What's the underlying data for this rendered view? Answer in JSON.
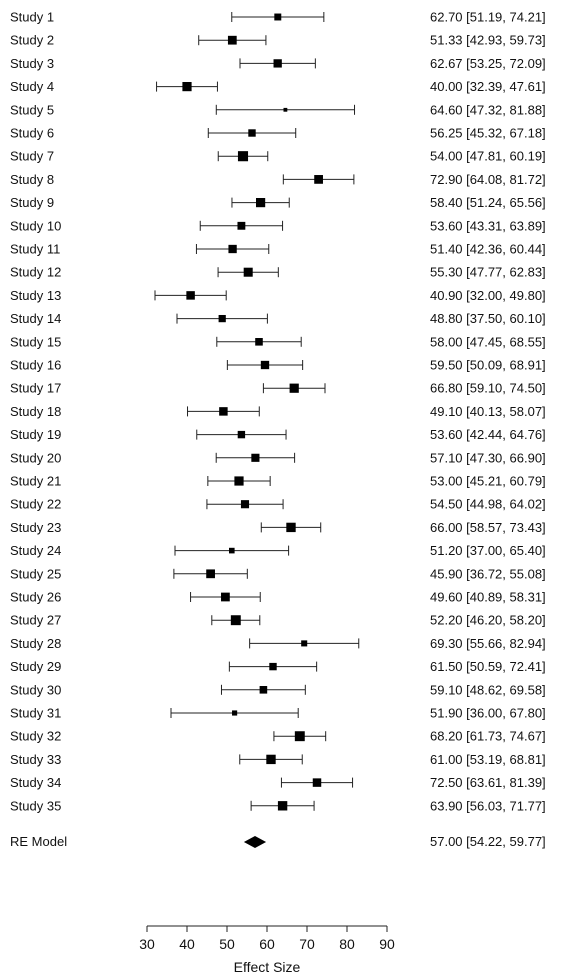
{
  "chart_data": {
    "type": "forest",
    "xlabel": "Effect Size",
    "xlim": [
      30,
      90
    ],
    "xticks": [
      30,
      40,
      50,
      60,
      70,
      80,
      90
    ],
    "grid": false,
    "legend": "none",
    "colors": {
      "marker": "#000000",
      "line": "#222222"
    },
    "studies": [
      {
        "label": "Study 1",
        "estimate": 62.7,
        "lower": 51.19,
        "upper": 74.21,
        "ci_text": "62.70 [51.19, 74.21]",
        "weight": 0.55
      },
      {
        "label": "Study 2",
        "estimate": 51.33,
        "lower": 42.93,
        "upper": 59.73,
        "ci_text": "51.33 [42.93, 59.73]",
        "weight": 0.75
      },
      {
        "label": "Study 3",
        "estimate": 62.67,
        "lower": 53.25,
        "upper": 72.09,
        "ci_text": "62.67 [53.25, 72.09]",
        "weight": 0.7
      },
      {
        "label": "Study 4",
        "estimate": 40.0,
        "lower": 32.39,
        "upper": 47.61,
        "ci_text": "40.00 [32.39, 47.61]",
        "weight": 0.8
      },
      {
        "label": "Study 5",
        "estimate": 64.6,
        "lower": 47.32,
        "upper": 81.88,
        "ci_text": "64.60 [47.32, 81.88]",
        "weight": 0.2
      },
      {
        "label": "Study 6",
        "estimate": 56.25,
        "lower": 45.32,
        "upper": 67.18,
        "ci_text": "56.25 [45.32, 67.18]",
        "weight": 0.6
      },
      {
        "label": "Study 7",
        "estimate": 54.0,
        "lower": 47.81,
        "upper": 60.19,
        "ci_text": "54.00 [47.81, 60.19]",
        "weight": 0.9
      },
      {
        "label": "Study 8",
        "estimate": 72.9,
        "lower": 64.08,
        "upper": 81.72,
        "ci_text": "72.90 [64.08, 81.72]",
        "weight": 0.75
      },
      {
        "label": "Study 9",
        "estimate": 58.4,
        "lower": 51.24,
        "upper": 65.56,
        "ci_text": "58.40 [51.24, 65.56]",
        "weight": 0.8
      },
      {
        "label": "Study 10",
        "estimate": 53.6,
        "lower": 43.31,
        "upper": 63.89,
        "ci_text": "53.60 [43.31, 63.89]",
        "weight": 0.65
      },
      {
        "label": "Study 11",
        "estimate": 51.4,
        "lower": 42.36,
        "upper": 60.44,
        "ci_text": "51.40 [42.36, 60.44]",
        "weight": 0.7
      },
      {
        "label": "Study 12",
        "estimate": 55.3,
        "lower": 47.77,
        "upper": 62.83,
        "ci_text": "55.30 [47.77, 62.83]",
        "weight": 0.78
      },
      {
        "label": "Study 13",
        "estimate": 40.9,
        "lower": 32.0,
        "upper": 49.8,
        "ci_text": "40.90 [32.00, 49.80]",
        "weight": 0.72
      },
      {
        "label": "Study 14",
        "estimate": 48.8,
        "lower": 37.5,
        "upper": 60.1,
        "ci_text": "48.80 [37.50, 60.10]",
        "weight": 0.58
      },
      {
        "label": "Study 15",
        "estimate": 58.0,
        "lower": 47.45,
        "upper": 68.55,
        "ci_text": "58.00 [47.45, 68.55]",
        "weight": 0.62
      },
      {
        "label": "Study 16",
        "estimate": 59.5,
        "lower": 50.09,
        "upper": 68.91,
        "ci_text": "59.50 [50.09, 68.91]",
        "weight": 0.7
      },
      {
        "label": "Study 17",
        "estimate": 66.8,
        "lower": 59.1,
        "upper": 74.5,
        "ci_text": "66.80 [59.10, 74.50]",
        "weight": 0.8
      },
      {
        "label": "Study 18",
        "estimate": 49.1,
        "lower": 40.13,
        "upper": 58.07,
        "ci_text": "49.10 [40.13, 58.07]",
        "weight": 0.72
      },
      {
        "label": "Study 19",
        "estimate": 53.6,
        "lower": 42.44,
        "upper": 64.76,
        "ci_text": "53.60 [42.44, 64.76]",
        "weight": 0.6
      },
      {
        "label": "Study 20",
        "estimate": 57.1,
        "lower": 47.3,
        "upper": 66.9,
        "ci_text": "57.10 [47.30, 66.90]",
        "weight": 0.68
      },
      {
        "label": "Study 21",
        "estimate": 53.0,
        "lower": 45.21,
        "upper": 60.79,
        "ci_text": "53.00 [45.21, 60.79]",
        "weight": 0.8
      },
      {
        "label": "Study 22",
        "estimate": 54.5,
        "lower": 44.98,
        "upper": 64.02,
        "ci_text": "54.50 [44.98, 64.02]",
        "weight": 0.68
      },
      {
        "label": "Study 23",
        "estimate": 66.0,
        "lower": 58.57,
        "upper": 73.43,
        "ci_text": "66.00 [58.57, 73.43]",
        "weight": 0.82
      },
      {
        "label": "Study 24",
        "estimate": 51.2,
        "lower": 37.0,
        "upper": 65.4,
        "ci_text": "51.20 [37.00, 65.40]",
        "weight": 0.4
      },
      {
        "label": "Study 25",
        "estimate": 45.9,
        "lower": 36.72,
        "upper": 55.08,
        "ci_text": "45.90 [36.72, 55.08]",
        "weight": 0.75
      },
      {
        "label": "Study 26",
        "estimate": 49.6,
        "lower": 40.89,
        "upper": 58.31,
        "ci_text": "49.60 [40.89, 58.31]",
        "weight": 0.75
      },
      {
        "label": "Study 27",
        "estimate": 52.2,
        "lower": 46.2,
        "upper": 58.2,
        "ci_text": "52.20 [46.20, 58.20]",
        "weight": 0.88
      },
      {
        "label": "Study 28",
        "estimate": 69.3,
        "lower": 55.66,
        "upper": 82.94,
        "ci_text": "69.30 [55.66, 82.94]",
        "weight": 0.45
      },
      {
        "label": "Study 29",
        "estimate": 61.5,
        "lower": 50.59,
        "upper": 72.41,
        "ci_text": "61.50 [50.59, 72.41]",
        "weight": 0.6
      },
      {
        "label": "Study 30",
        "estimate": 59.1,
        "lower": 48.62,
        "upper": 69.58,
        "ci_text": "59.10 [48.62, 69.58]",
        "weight": 0.62
      },
      {
        "label": "Study 31",
        "estimate": 51.9,
        "lower": 36.0,
        "upper": 67.8,
        "ci_text": "51.90 [36.00, 67.80]",
        "weight": 0.35
      },
      {
        "label": "Study 32",
        "estimate": 68.2,
        "lower": 61.73,
        "upper": 74.67,
        "ci_text": "68.20 [61.73, 74.67]",
        "weight": 0.88
      },
      {
        "label": "Study 33",
        "estimate": 61.0,
        "lower": 53.19,
        "upper": 68.81,
        "ci_text": "61.00 [53.19, 68.81]",
        "weight": 0.82
      },
      {
        "label": "Study 34",
        "estimate": 72.5,
        "lower": 63.61,
        "upper": 81.39,
        "ci_text": "72.50 [63.61, 81.39]",
        "weight": 0.72
      },
      {
        "label": "Study 35",
        "estimate": 63.9,
        "lower": 56.03,
        "upper": 71.77,
        "ci_text": "63.90 [56.03, 71.77]",
        "weight": 0.82
      }
    ],
    "summary": {
      "label": "RE Model",
      "estimate": 57.0,
      "lower": 54.22,
      "upper": 59.77,
      "ci_text": "57.00 [54.22, 59.77]"
    }
  }
}
